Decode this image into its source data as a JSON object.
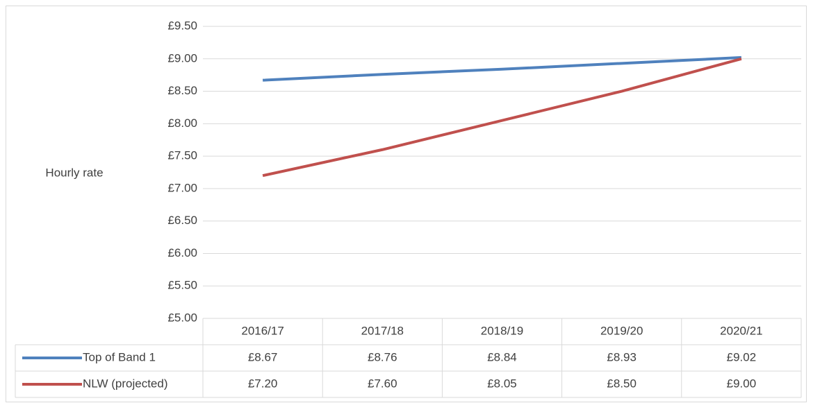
{
  "chart_data": {
    "type": "line",
    "y_label": "Hourly rate",
    "categories": [
      "2016/17",
      "2017/18",
      "2018/19",
      "2019/20",
      "2020/21"
    ],
    "series": [
      {
        "name": "Top of Band 1",
        "color": "#4f81bd",
        "values": [
          8.67,
          8.76,
          8.84,
          8.93,
          9.02
        ],
        "value_labels": [
          "£8.67",
          "£8.76",
          "£8.84",
          "£8.93",
          "£9.02"
        ]
      },
      {
        "name": "NLW (projected)",
        "color": "#c0504d",
        "values": [
          7.2,
          7.6,
          8.05,
          8.5,
          9.0
        ],
        "value_labels": [
          "£7.20",
          "£7.60",
          "£8.05",
          "£8.50",
          "£9.00"
        ]
      }
    ],
    "ylim": [
      5,
      9.5
    ],
    "yticks": [
      {
        "value": 5,
        "label": "£5.00"
      },
      {
        "value": 5.5,
        "label": "£5.50"
      },
      {
        "value": 6,
        "label": "£6.00"
      },
      {
        "value": 6.5,
        "label": "£6.50"
      },
      {
        "value": 7,
        "label": "£7.00"
      },
      {
        "value": 7.5,
        "label": "£7.50"
      },
      {
        "value": 8,
        "label": "£8.00"
      },
      {
        "value": 8.5,
        "label": "£8.50"
      },
      {
        "value": 9,
        "label": "£9.00"
      },
      {
        "value": 9.5,
        "label": "£9.50"
      }
    ],
    "grid": true
  }
}
